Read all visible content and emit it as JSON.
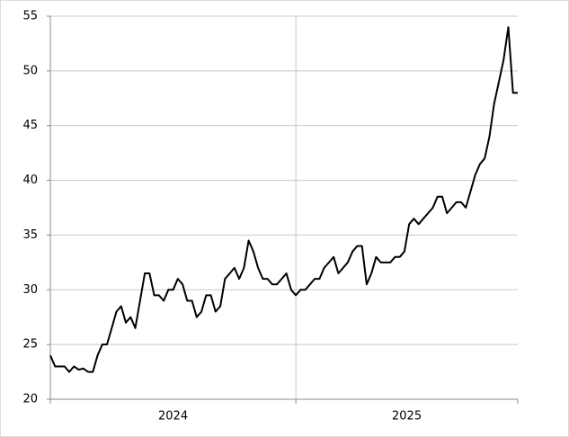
{
  "chart_data": {
    "type": "line",
    "categories": [
      "2024",
      "2025"
    ],
    "values": [
      [
        24,
        23,
        23,
        23,
        22.5,
        23,
        22.7,
        22.8,
        22.5,
        22.5,
        24,
        25,
        25,
        26.5,
        28,
        28.5,
        27,
        27.5,
        26.5,
        29,
        31.5,
        31.5,
        29.5,
        29.5,
        29,
        30,
        30,
        31,
        30.5,
        29,
        29,
        27.5,
        28,
        29.5,
        29.5,
        28,
        28.5,
        31,
        31.5,
        32,
        31,
        32,
        34.5,
        33.5,
        32,
        31,
        31,
        30.5,
        30.5,
        31,
        31.5,
        30
      ],
      [
        29.5,
        30,
        30,
        30.5,
        31,
        31,
        32,
        32.5,
        33,
        31.5,
        32,
        32.5,
        33.5,
        34,
        34,
        30.5,
        31.5,
        33,
        32.5,
        32.5,
        32.5,
        33,
        33,
        33.5,
        36,
        36.5,
        36,
        36.5,
        37,
        37.5,
        38.5,
        38.5,
        37,
        37.5,
        38,
        38,
        37.5,
        39,
        40.5,
        41.5,
        42,
        44,
        47,
        49,
        51,
        54,
        48,
        48
      ]
    ],
    "color": "#000000",
    "ylim": [
      20,
      55
    ],
    "yticks": [
      20,
      25,
      30,
      35,
      40,
      45,
      50,
      55
    ],
    "grid": true
  }
}
